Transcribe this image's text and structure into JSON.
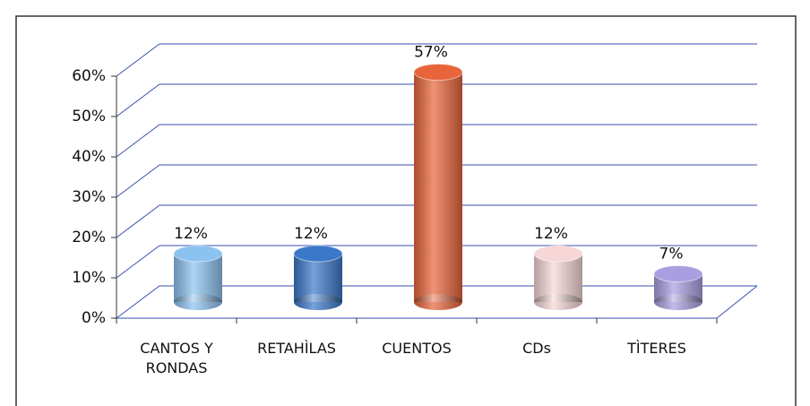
{
  "chart_data": {
    "type": "cylinder-bar",
    "categories": [
      "CANTOS Y RONDAS",
      "RETAHÌLAS",
      "CUENTOS",
      "CDs",
      "TÌTERES"
    ],
    "values": [
      12,
      12,
      57,
      12,
      7
    ],
    "value_labels": [
      "12%",
      "12%",
      "57%",
      "12%",
      "7%"
    ],
    "colors": [
      "#8cc2f0",
      "#3b78c9",
      "#e8653b",
      "#f6d6d6",
      "#a99fe0"
    ],
    "ylim": [
      0,
      60
    ],
    "yticks": [
      {
        "value": 0,
        "label": "0%"
      },
      {
        "value": 10,
        "label": "10%"
      },
      {
        "value": 20,
        "label": "20%"
      },
      {
        "value": 30,
        "label": "30%"
      },
      {
        "value": 40,
        "label": "40%"
      },
      {
        "value": 50,
        "label": "50%"
      },
      {
        "value": 60,
        "label": "60%"
      }
    ],
    "grid": true
  }
}
